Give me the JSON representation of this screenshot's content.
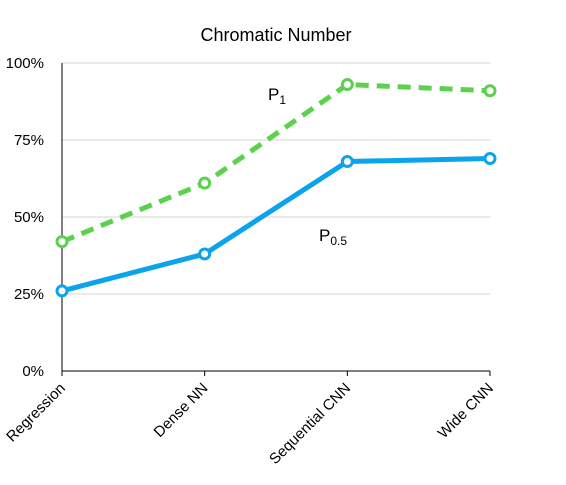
{
  "chart_data": {
    "type": "line",
    "title": "Chromatic Number",
    "xlabel": "",
    "ylabel": "",
    "categories": [
      "Regression",
      "Dense NN",
      "Sequential CNN",
      "Wide CNN"
    ],
    "yticks": [
      "0%",
      "25%",
      "50%",
      "75%",
      "100%"
    ],
    "ylim": [
      0,
      100
    ],
    "grid": true,
    "series": [
      {
        "name": "P1",
        "label_main": "P",
        "label_sub": "1",
        "values": [
          42,
          61,
          93,
          91
        ],
        "color": "#5bd14d",
        "style": "dashed"
      },
      {
        "name": "P0.5",
        "label_main": "P",
        "label_sub": "0.5",
        "values": [
          26,
          38,
          68,
          69
        ],
        "color": "#0aa3ec",
        "style": "solid"
      }
    ]
  }
}
